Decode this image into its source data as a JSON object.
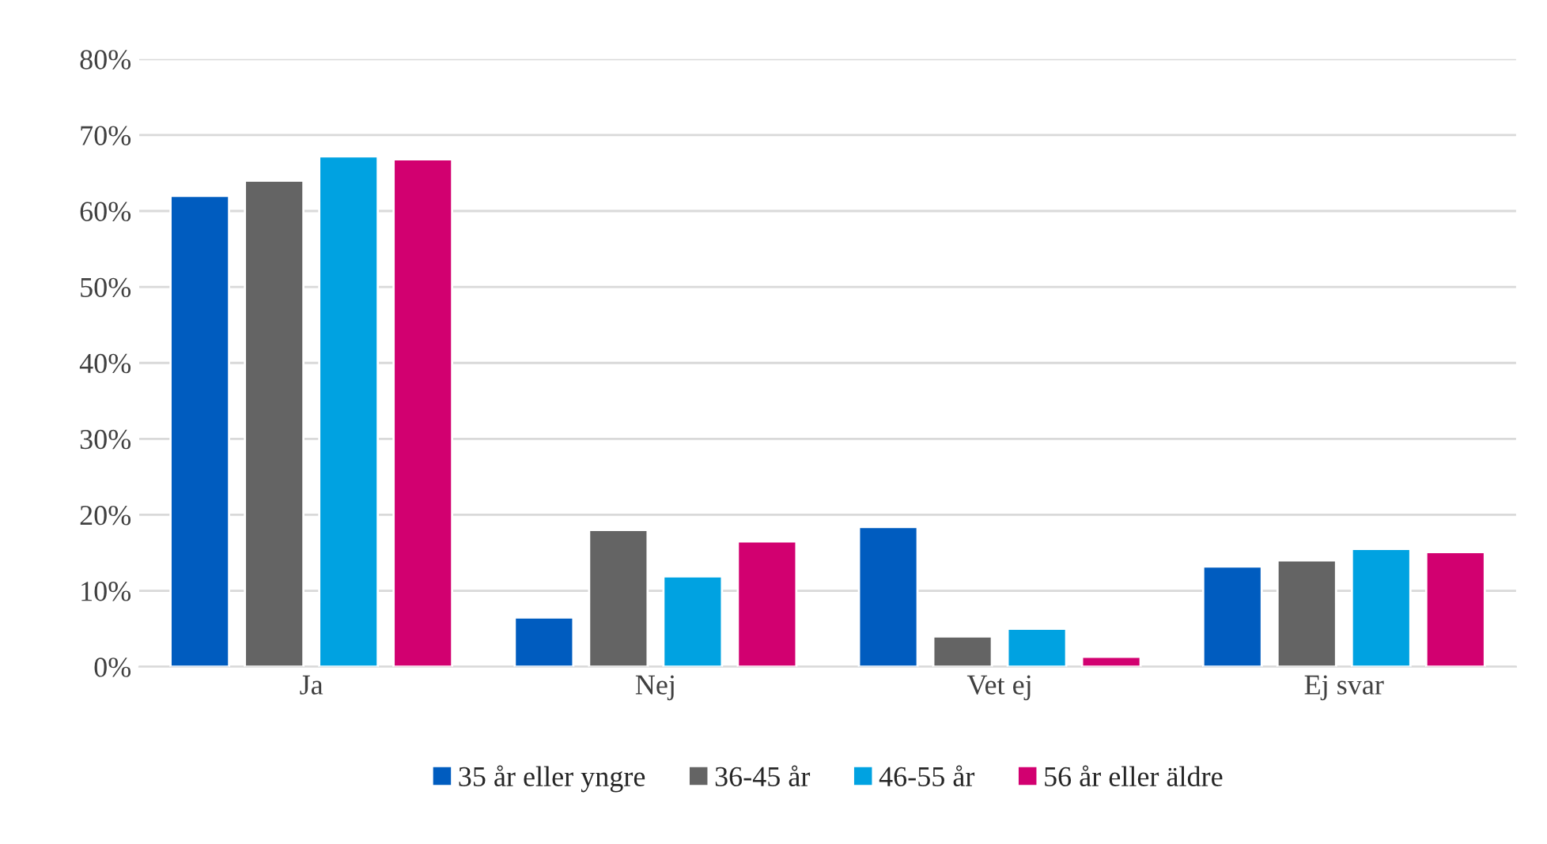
{
  "chart_data": {
    "type": "bar",
    "categories": [
      "Ja",
      "Nej",
      "Vet ej",
      "Ej svar"
    ],
    "series": [
      {
        "name": "35 år eller yngre",
        "color": "#005cbf",
        "values": [
          62,
          6.5,
          18.4,
          13.2
        ]
      },
      {
        "name": "36-45 år",
        "color": "#646464",
        "values": [
          64,
          18,
          4,
          14
        ]
      },
      {
        "name": "46-55 år",
        "color": "#00a2e1",
        "values": [
          67.2,
          11.9,
          5,
          15.5
        ]
      },
      {
        "name": "56 år eller äldre",
        "color": "#d20070",
        "values": [
          66.8,
          16.5,
          1.3,
          15.1
        ]
      }
    ],
    "ylim": [
      0,
      80
    ],
    "yticks": [
      {
        "value": 0,
        "label": "0%"
      },
      {
        "value": 10,
        "label": "10%"
      },
      {
        "value": 20,
        "label": "20%"
      },
      {
        "value": 30,
        "label": "30%"
      },
      {
        "value": 40,
        "label": "40%"
      },
      {
        "value": 50,
        "label": "50%"
      },
      {
        "value": 60,
        "label": "60%"
      },
      {
        "value": 70,
        "label": "70%"
      },
      {
        "value": 80,
        "label": "80%"
      }
    ],
    "grid": "y",
    "legend": "bottom"
  }
}
